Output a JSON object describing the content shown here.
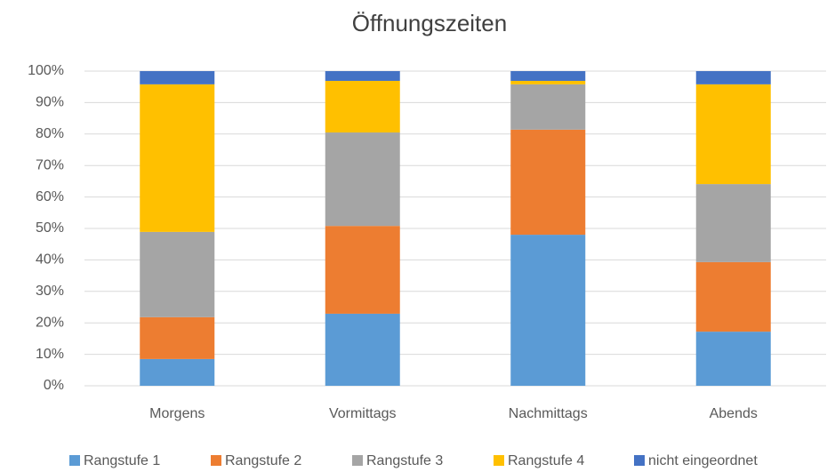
{
  "chart_data": {
    "type": "stacked_bar",
    "title": "Öffnungszeiten",
    "categories": [
      "Morgens",
      "Vormittags",
      "Nachmittags",
      "Abends"
    ],
    "series": [
      {
        "name": "Rangstufe 1",
        "color": "#5b9bd5",
        "values": [
          8.5,
          22.9,
          48.0,
          17.2
        ]
      },
      {
        "name": "Rangstufe 2",
        "color": "#ed7d31",
        "values": [
          13.3,
          27.9,
          33.4,
          22.1
        ]
      },
      {
        "name": "Rangstufe 3",
        "color": "#a5a5a5",
        "values": [
          27.1,
          29.7,
          14.4,
          24.8
        ]
      },
      {
        "name": "Rangstufe 4",
        "color": "#ffc000",
        "values": [
          46.9,
          16.4,
          1.1,
          31.7
        ]
      },
      {
        "name": "nicht eingeordnet",
        "color": "#4472c4",
        "values": [
          4.2,
          3.1,
          3.1,
          4.2
        ]
      }
    ],
    "ylim": [
      0,
      100
    ],
    "yticks": [
      {
        "value": 0,
        "label": "0%"
      },
      {
        "value": 10,
        "label": "10%"
      },
      {
        "value": 20,
        "label": "20%"
      },
      {
        "value": 30,
        "label": "30%"
      },
      {
        "value": 40,
        "label": "40%"
      },
      {
        "value": 50,
        "label": "50%"
      },
      {
        "value": 60,
        "label": "60%"
      },
      {
        "value": 70,
        "label": "70%"
      },
      {
        "value": 80,
        "label": "80%"
      },
      {
        "value": 90,
        "label": "90%"
      },
      {
        "value": 100,
        "label": "100%"
      }
    ],
    "grid": true,
    "legend": "bottom"
  }
}
